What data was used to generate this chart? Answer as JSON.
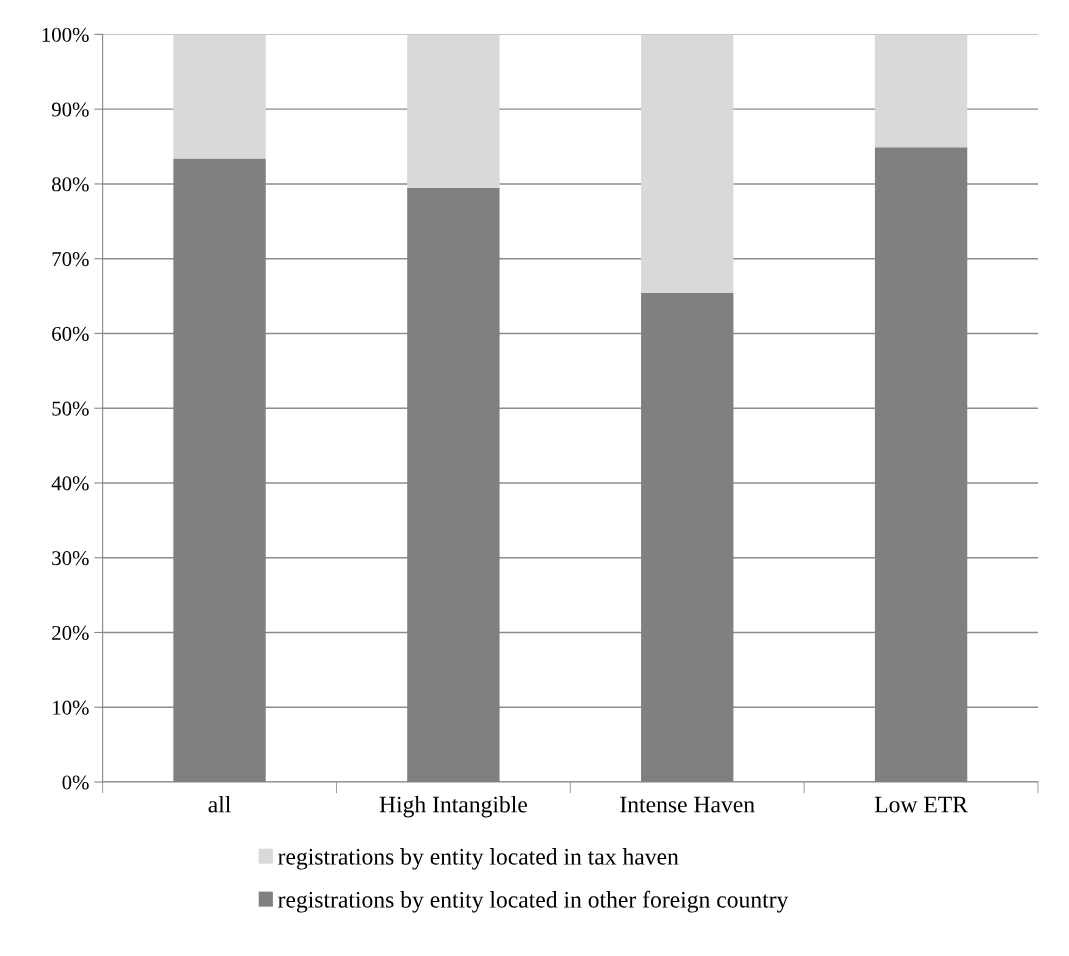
{
  "chart_data": {
    "type": "bar",
    "stacked": true,
    "categories": [
      "all",
      "High Intangible",
      "Intense Haven",
      "Low ETR"
    ],
    "series": [
      {
        "name": "registrations by entity located in other foreign country",
        "color": "#808080",
        "values": [
          83.4,
          79.5,
          65.4,
          84.9
        ]
      },
      {
        "name": "registrations by entity located in tax haven",
        "color": "#d9d9d9",
        "values": [
          16.6,
          20.5,
          34.6,
          15.1
        ]
      }
    ],
    "ylim": [
      0,
      100
    ],
    "yticks": [
      {
        "value": 0,
        "label": "0%"
      },
      {
        "value": 10,
        "label": "10%"
      },
      {
        "value": 20,
        "label": "20%"
      },
      {
        "value": 30,
        "label": "30%"
      },
      {
        "value": 40,
        "label": "40%"
      },
      {
        "value": 50,
        "label": "50%"
      },
      {
        "value": 60,
        "label": "60%"
      },
      {
        "value": 70,
        "label": "70%"
      },
      {
        "value": 80,
        "label": "80%"
      },
      {
        "value": 90,
        "label": "90%"
      },
      {
        "value": 100,
        "label": "100%"
      }
    ],
    "grid": "y",
    "legend": "bottom"
  }
}
